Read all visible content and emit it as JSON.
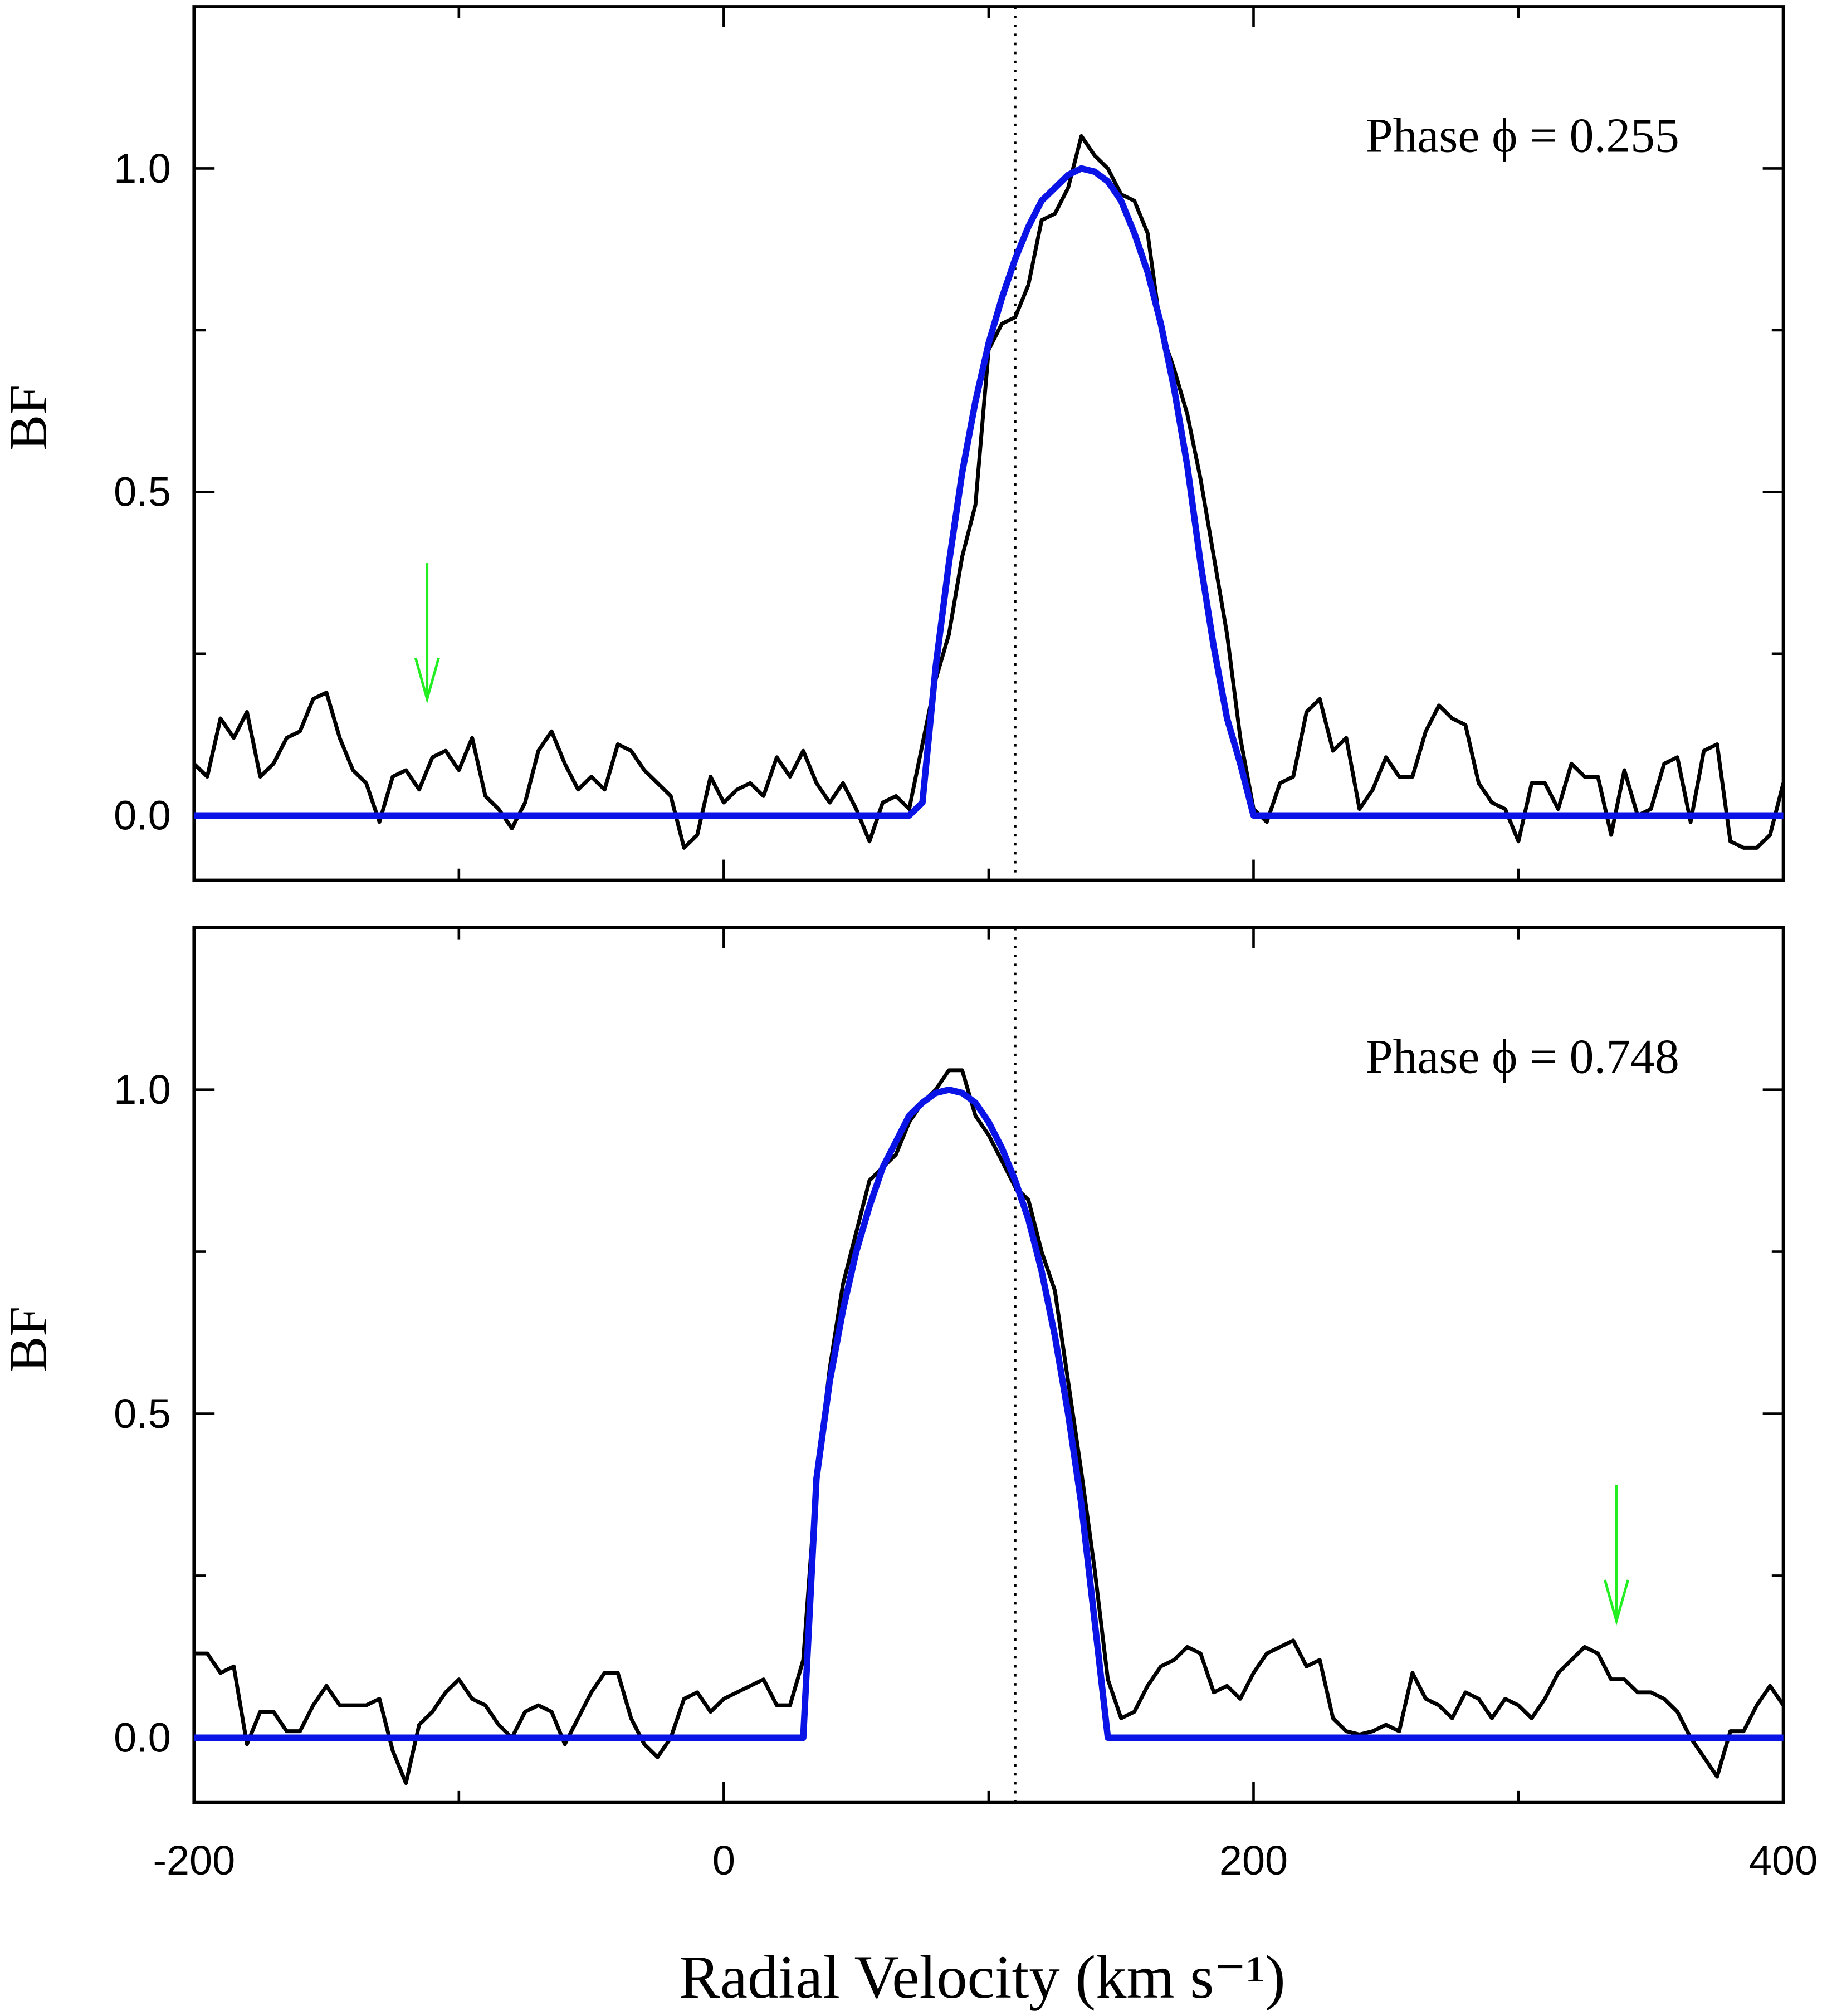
{
  "chart_data": [
    {
      "type": "line",
      "ylabel": "BF",
      "annotation": "Phase ϕ = 0.255",
      "x": [
        -200,
        -195,
        -190,
        -185,
        -180,
        -175,
        -170,
        -165,
        -160,
        -155,
        -150,
        -145,
        -140,
        -135,
        -130,
        -125,
        -120,
        -115,
        -110,
        -105,
        -100,
        -95,
        -90,
        -85,
        -80,
        -75,
        -70,
        -65,
        -60,
        -55,
        -50,
        -45,
        -40,
        -35,
        -30,
        -25,
        -20,
        -15,
        -10,
        -5,
        0,
        5,
        10,
        15,
        20,
        25,
        30,
        35,
        40,
        45,
        50,
        55,
        60,
        65,
        70,
        75,
        80,
        85,
        90,
        95,
        100,
        105,
        110,
        115,
        120,
        125,
        130,
        135,
        140,
        145,
        150,
        155,
        160,
        165,
        170,
        175,
        180,
        185,
        190,
        195,
        200,
        205,
        210,
        215,
        220,
        225,
        230,
        235,
        240,
        245,
        250,
        255,
        260,
        265,
        270,
        275,
        280,
        285,
        290,
        295,
        300,
        305,
        310,
        315,
        320,
        325,
        330,
        335,
        340,
        345,
        350,
        355,
        360,
        365,
        370,
        375,
        380,
        385,
        390,
        395,
        400
      ],
      "series": [
        {
          "color": "#000000",
          "values": [
            0.08,
            0.06,
            0.15,
            0.12,
            0.16,
            0.06,
            0.08,
            0.12,
            0.13,
            0.18,
            0.19,
            0.12,
            0.07,
            0.05,
            -0.01,
            0.06,
            0.07,
            0.04,
            0.09,
            0.1,
            0.07,
            0.12,
            0.03,
            0.01,
            -0.02,
            0.02,
            0.1,
            0.13,
            0.08,
            0.04,
            0.06,
            0.04,
            0.11,
            0.1,
            0.07,
            0.05,
            0.03,
            -0.05,
            -0.03,
            0.06,
            0.02,
            0.04,
            0.05,
            0.03,
            0.09,
            0.06,
            0.1,
            0.05,
            0.02,
            0.05,
            0.01,
            -0.04,
            0.02,
            0.03,
            0.01,
            0.11,
            0.21,
            0.28,
            0.4,
            0.48,
            0.72,
            0.76,
            0.77,
            0.82,
            0.92,
            0.93,
            0.97,
            1.05,
            1.02,
            1.0,
            0.96,
            0.95,
            0.9,
            0.75,
            0.69,
            0.62,
            0.52,
            0.4,
            0.28,
            0.12,
            0.01,
            -0.01,
            0.05,
            0.06,
            0.16,
            0.18,
            0.1,
            0.12,
            0.01,
            0.04,
            0.09,
            0.06,
            0.06,
            0.13,
            0.17,
            0.15,
            0.14,
            0.05,
            0.02,
            0.01,
            -0.04,
            0.05,
            0.05,
            0.01,
            0.08,
            0.06,
            0.06,
            -0.03,
            0.07,
            0.0,
            0.01,
            0.08,
            0.09,
            -0.01,
            0.1,
            0.11,
            -0.04,
            -0.05,
            -0.05,
            -0.03,
            0.05
          ]
        },
        {
          "color": "#0a14e6",
          "values": [
            0,
            0,
            0,
            0,
            0,
            0,
            0,
            0,
            0,
            0,
            0,
            0,
            0,
            0,
            0,
            0,
            0,
            0,
            0,
            0,
            0,
            0,
            0,
            0,
            0,
            0,
            0,
            0,
            0,
            0,
            0,
            0,
            0,
            0,
            0,
            0,
            0,
            0,
            0,
            0,
            0,
            0,
            0,
            0,
            0,
            0,
            0,
            0,
            0,
            0,
            0,
            0,
            0,
            0,
            0,
            0.02,
            0.23,
            0.39,
            0.53,
            0.64,
            0.73,
            0.8,
            0.86,
            0.91,
            0.95,
            0.97,
            0.99,
            1.0,
            0.995,
            0.98,
            0.95,
            0.9,
            0.84,
            0.76,
            0.66,
            0.54,
            0.39,
            0.26,
            0.15,
            0.08,
            0,
            0,
            0,
            0,
            0,
            0,
            0,
            0,
            0,
            0,
            0,
            0,
            0,
            0,
            0,
            0,
            0,
            0,
            0,
            0,
            0,
            0,
            0,
            0,
            0,
            0,
            0,
            0,
            0,
            0,
            0,
            0,
            0,
            0,
            0,
            0,
            0,
            0,
            0,
            0,
            0
          ]
        }
      ],
      "xlim": [
        -200,
        400
      ],
      "xticks": [
        -200,
        0,
        200,
        400
      ],
      "xminorticks": [
        -100,
        100,
        300
      ],
      "show_xtick_labels": false,
      "ylim": [
        -0.1,
        1.25
      ],
      "yticks": [
        {
          "value": 0,
          "label": "0.0"
        },
        {
          "value": 0.5,
          "label": "0.5"
        },
        {
          "value": 1,
          "label": "1.0"
        }
      ],
      "yminorticks": [
        0.25,
        0.75
      ],
      "vline": 110,
      "arrows": [
        {
          "x": -112,
          "y_start": 0.39,
          "y_end": 0.18,
          "color": "#22ee22"
        }
      ]
    },
    {
      "type": "line",
      "ylabel": "BF",
      "xlabel": "Radial Velocity (km s⁻¹)",
      "annotation": "Phase ϕ = 0.748",
      "x": [
        -200,
        -195,
        -190,
        -185,
        -180,
        -175,
        -170,
        -165,
        -160,
        -155,
        -150,
        -145,
        -140,
        -135,
        -130,
        -125,
        -120,
        -115,
        -110,
        -105,
        -100,
        -95,
        -90,
        -85,
        -80,
        -75,
        -70,
        -65,
        -60,
        -55,
        -50,
        -45,
        -40,
        -35,
        -30,
        -25,
        -20,
        -15,
        -10,
        -5,
        0,
        5,
        10,
        15,
        20,
        25,
        30,
        35,
        40,
        45,
        50,
        55,
        60,
        65,
        70,
        75,
        80,
        85,
        90,
        95,
        100,
        105,
        110,
        115,
        120,
        125,
        130,
        135,
        140,
        145,
        150,
        155,
        160,
        165,
        170,
        175,
        180,
        185,
        190,
        195,
        200,
        205,
        210,
        215,
        220,
        225,
        230,
        235,
        240,
        245,
        250,
        255,
        260,
        265,
        270,
        275,
        280,
        285,
        290,
        295,
        300,
        305,
        310,
        315,
        320,
        325,
        330,
        335,
        340,
        345,
        350,
        355,
        360,
        365,
        370,
        375,
        380,
        385,
        390,
        395,
        400
      ],
      "series": [
        {
          "color": "#000000",
          "values": [
            0.13,
            0.13,
            0.1,
            0.11,
            -0.01,
            0.04,
            0.04,
            0.01,
            0.01,
            0.05,
            0.08,
            0.05,
            0.05,
            0.05,
            0.06,
            -0.02,
            -0.07,
            0.02,
            0.04,
            0.07,
            0.09,
            0.06,
            0.05,
            0.02,
            0.0,
            0.04,
            0.05,
            0.04,
            -0.01,
            0.03,
            0.07,
            0.1,
            0.1,
            0.03,
            -0.01,
            -0.03,
            0.0,
            0.06,
            0.07,
            0.04,
            0.06,
            0.07,
            0.08,
            0.09,
            0.05,
            0.05,
            0.12,
            0.4,
            0.57,
            0.7,
            0.78,
            0.86,
            0.88,
            0.9,
            0.95,
            0.98,
            1.0,
            1.03,
            1.03,
            0.96,
            0.93,
            0.89,
            0.85,
            0.83,
            0.75,
            0.69,
            0.55,
            0.41,
            0.26,
            0.09,
            0.03,
            0.04,
            0.08,
            0.11,
            0.12,
            0.14,
            0.13,
            0.07,
            0.08,
            0.06,
            0.1,
            0.13,
            0.14,
            0.15,
            0.11,
            0.12,
            0.03,
            0.01,
            0.005,
            0.01,
            0.02,
            0.01,
            0.1,
            0.06,
            0.05,
            0.03,
            0.07,
            0.06,
            0.03,
            0.06,
            0.05,
            0.03,
            0.06,
            0.1,
            0.12,
            0.14,
            0.13,
            0.09,
            0.09,
            0.07,
            0.07,
            0.06,
            0.04,
            0.0,
            -0.03,
            -0.06,
            0.01,
            0.01,
            0.05,
            0.08,
            0.05
          ]
        },
        {
          "color": "#0a14e6",
          "values": [
            0,
            0,
            0,
            0,
            0,
            0,
            0,
            0,
            0,
            0,
            0,
            0,
            0,
            0,
            0,
            0,
            0,
            0,
            0,
            0,
            0,
            0,
            0,
            0,
            0,
            0,
            0,
            0,
            0,
            0,
            0,
            0,
            0,
            0,
            0,
            0,
            0,
            0,
            0,
            0,
            0,
            0,
            0,
            0,
            0,
            0,
            0,
            0.4,
            0.55,
            0.66,
            0.75,
            0.82,
            0.88,
            0.92,
            0.96,
            0.98,
            0.995,
            1.0,
            0.995,
            0.98,
            0.95,
            0.91,
            0.86,
            0.8,
            0.72,
            0.62,
            0.5,
            0.36,
            0.18,
            0,
            0,
            0,
            0,
            0,
            0,
            0,
            0,
            0,
            0,
            0,
            0,
            0,
            0,
            0,
            0,
            0,
            0,
            0,
            0,
            0,
            0,
            0,
            0,
            0,
            0,
            0,
            0,
            0,
            0,
            0,
            0,
            0,
            0,
            0,
            0,
            0,
            0,
            0,
            0,
            0,
            0,
            0,
            0,
            0,
            0,
            0,
            0,
            0,
            0,
            0,
            0
          ]
        }
      ],
      "xlim": [
        -200,
        400
      ],
      "xticks": [
        -200,
        0,
        200,
        400
      ],
      "xminorticks": [
        -100,
        100,
        300
      ],
      "show_xtick_labels": true,
      "ylim": [
        -0.1,
        1.25
      ],
      "yticks": [
        {
          "value": 0,
          "label": "0.0"
        },
        {
          "value": 0.5,
          "label": "0.5"
        },
        {
          "value": 1,
          "label": "1.0"
        }
      ],
      "yminorticks": [
        0.25,
        0.75
      ],
      "vline": 110,
      "arrows": [
        {
          "x": 337,
          "y_start": 0.39,
          "y_end": 0.18,
          "color": "#22ee22"
        }
      ]
    }
  ]
}
